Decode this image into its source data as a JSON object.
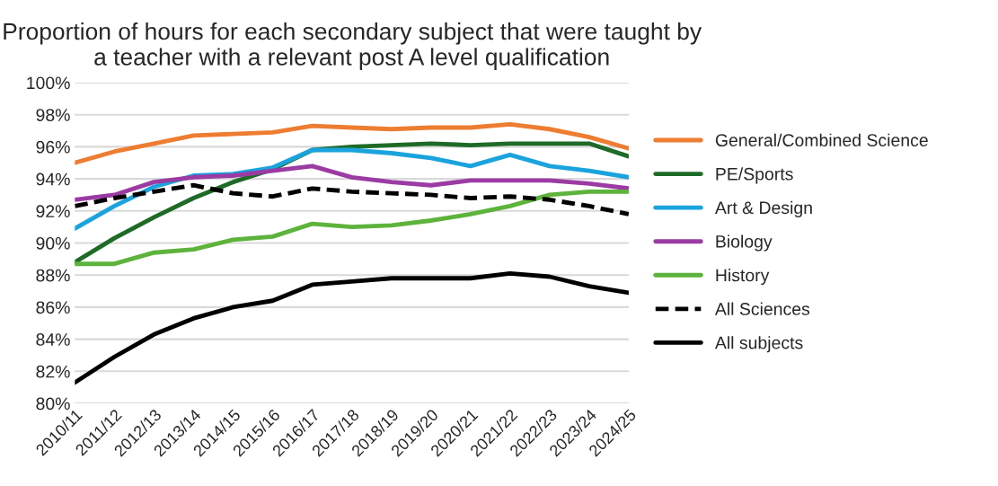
{
  "chart_data": {
    "type": "line",
    "title": "Proportion of hours for each secondary subject that were taught by\na teacher with a relevant post A level qualification",
    "categories": [
      "2010/11",
      "2011/12",
      "2012/13",
      "2013/14",
      "2014/15",
      "2015/16",
      "2016/17",
      "2017/18",
      "2018/19",
      "2019/20",
      "2020/21",
      "2021/22",
      "2022/23",
      "2023/24",
      "2024/25"
    ],
    "series": [
      {
        "name": "General/Combined Science",
        "color": "#ed7d31",
        "values": [
          95.0,
          95.7,
          96.2,
          96.7,
          96.8,
          96.9,
          97.3,
          97.2,
          97.1,
          97.2,
          97.2,
          97.4,
          97.1,
          96.6,
          95.9
        ]
      },
      {
        "name": "PE/Sports",
        "color": "#1e6b28",
        "values": [
          88.8,
          90.3,
          91.6,
          92.8,
          93.8,
          94.6,
          95.8,
          96.0,
          96.1,
          96.2,
          96.1,
          96.2,
          96.2,
          96.2,
          95.4
        ]
      },
      {
        "name": "Art & Design",
        "color": "#1aa3dd",
        "values": [
          90.9,
          92.3,
          93.5,
          94.2,
          94.3,
          94.7,
          95.8,
          95.8,
          95.6,
          95.3,
          94.8,
          95.5,
          94.8,
          94.5,
          94.1
        ]
      },
      {
        "name": "Biology",
        "color": "#9b3ba3",
        "values": [
          92.7,
          93.0,
          93.8,
          94.1,
          94.2,
          94.5,
          94.8,
          94.1,
          93.8,
          93.6,
          93.9,
          93.9,
          93.9,
          93.7,
          93.4
        ]
      },
      {
        "name": "History",
        "color": "#5db33c",
        "values": [
          88.7,
          88.7,
          89.4,
          89.6,
          90.2,
          90.4,
          91.2,
          91.0,
          91.1,
          91.4,
          91.8,
          92.3,
          93.0,
          93.2,
          93.2
        ]
      },
      {
        "name": "All Sciences",
        "color": "#000000",
        "line_style": "dashed",
        "values": [
          92.3,
          92.8,
          93.2,
          93.6,
          93.1,
          92.9,
          93.4,
          93.2,
          93.1,
          93.0,
          92.8,
          92.9,
          92.7,
          92.3,
          91.8
        ]
      },
      {
        "name": "All subjects",
        "color": "#000000",
        "values": [
          81.3,
          82.9,
          84.3,
          85.3,
          86.0,
          86.4,
          87.4,
          87.6,
          87.8,
          87.8,
          87.8,
          88.1,
          87.9,
          87.3,
          86.9
        ]
      }
    ],
    "ylim": [
      80,
      100
    ],
    "yticks": [
      {
        "value": 80,
        "label": "80%"
      },
      {
        "value": 82,
        "label": "82%"
      },
      {
        "value": 84,
        "label": "84%"
      },
      {
        "value": 86,
        "label": "86%"
      },
      {
        "value": 88,
        "label": "88%"
      },
      {
        "value": 90,
        "label": "90%"
      },
      {
        "value": 92,
        "label": "92%"
      },
      {
        "value": 94,
        "label": "94%"
      },
      {
        "value": 96,
        "label": "96%"
      },
      {
        "value": 98,
        "label": "98%"
      },
      {
        "value": 100,
        "label": "100%"
      }
    ],
    "grid": "y",
    "legend": "right"
  }
}
